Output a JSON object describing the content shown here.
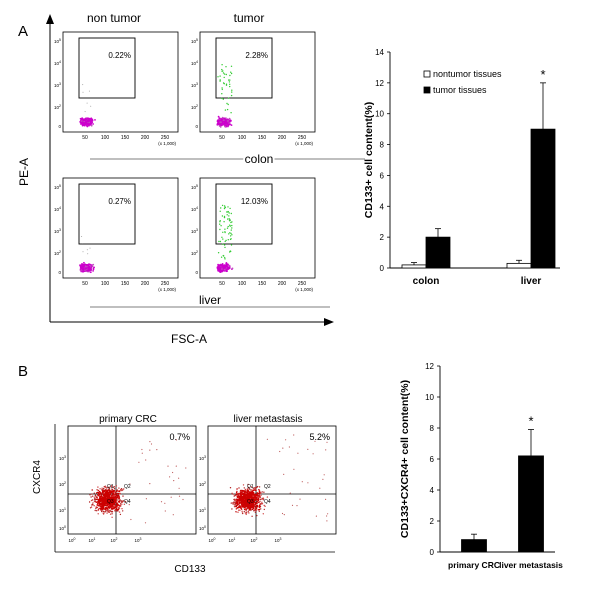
{
  "panel_a": {
    "letter": "A",
    "col_labels": [
      "non tumor",
      "tumor"
    ],
    "y_axis_label": "PE-A",
    "x_axis_label": "FSC-A",
    "group_labels": [
      "colon",
      "liver"
    ],
    "plots": [
      {
        "pct": "0.22%",
        "tumor": false
      },
      {
        "pct": "2.28%",
        "tumor": true
      },
      {
        "pct": "0.27%",
        "tumor": false
      },
      {
        "pct": "12.03%",
        "tumor": true
      }
    ],
    "x_ticks": [
      "50",
      "100",
      "150",
      "200",
      "250"
    ],
    "x_unit": "(x 1,000)",
    "y_ticks": [
      "10",
      "10",
      "10",
      "10"
    ],
    "y_exps": [
      "5",
      "4",
      "3",
      "2"
    ],
    "y_zero": "0"
  },
  "panel_b": {
    "letter": "B",
    "y_axis_label": "CXCR4",
    "x_axis_label": "CD133",
    "plots": [
      {
        "title": "primary CRC",
        "pct": "0.7%"
      },
      {
        "title": "liver metastasis",
        "pct": "5.2%"
      }
    ],
    "quadrants": [
      "Q1",
      "Q2",
      "Q3",
      "Q4"
    ],
    "ticks": [
      "10",
      "10",
      "10",
      "10"
    ],
    "tick_exps": [
      "0",
      "1",
      "2",
      "3"
    ]
  },
  "chart_data": [
    {
      "type": "bar",
      "categories": [
        "colon",
        "liver"
      ],
      "series": [
        {
          "name": "nontumor tissues",
          "values": [
            0.2,
            0.3
          ],
          "errors": [
            0.15,
            0.2
          ],
          "color": "#ffffff"
        },
        {
          "name": "tumor tissues",
          "values": [
            2.0,
            9.0
          ],
          "errors": [
            0.55,
            3.0
          ],
          "color": "#000000"
        }
      ],
      "significance": [
        "",
        "*"
      ],
      "ylabel": "CD133+ cell content(%)",
      "ylim": [
        0,
        14
      ],
      "yticks": [
        0,
        2,
        4,
        6,
        8,
        10,
        12,
        14
      ],
      "legend": "top-left",
      "grid": false
    },
    {
      "type": "bar",
      "categories": [
        "primary CRC",
        "liver metastasis"
      ],
      "series": [
        {
          "name": "CD133+CXCR4+",
          "values": [
            0.8,
            6.2
          ],
          "errors": [
            0.35,
            1.7
          ],
          "color": "#000000"
        }
      ],
      "significance": [
        "",
        "*"
      ],
      "ylabel": "CD133+CXCR4+ cell content(%)",
      "ylim": [
        0,
        12
      ],
      "yticks": [
        0,
        2,
        4,
        6,
        8,
        10,
        12
      ],
      "grid": false
    }
  ]
}
